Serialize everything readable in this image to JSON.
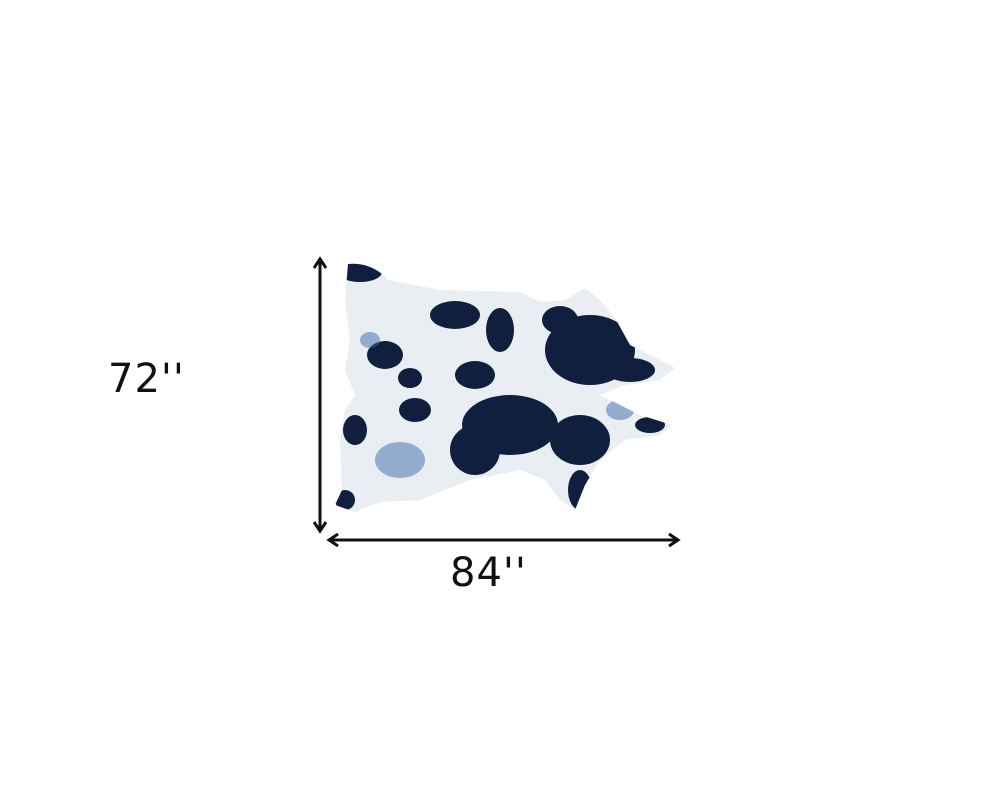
{
  "product": {
    "image": "cowhide-rug",
    "colors": {
      "base": "#e9eef2",
      "spots": "#0f1f3d",
      "speckle": "#3a6aa8"
    }
  },
  "dimensions": {
    "height_label": "72''",
    "width_label": "84''"
  }
}
